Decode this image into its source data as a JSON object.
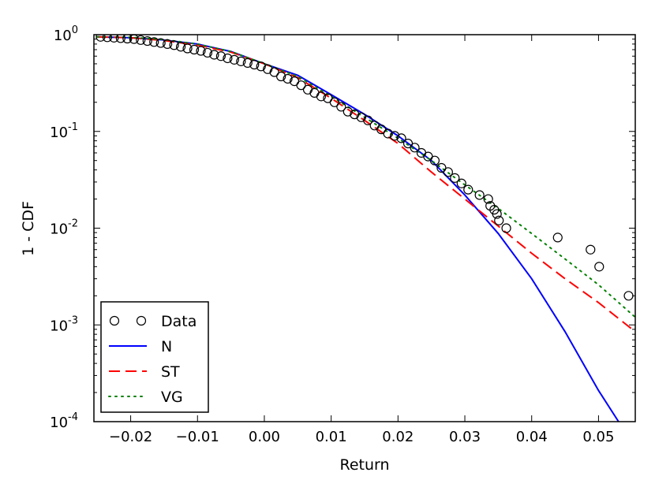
{
  "chart_data": {
    "type": "line",
    "title": "",
    "xlabel": "Return",
    "ylabel": "1 - CDF",
    "yscale": "log",
    "xlim": [
      -0.0255,
      0.0555
    ],
    "ylim": [
      0.0001,
      1.0
    ],
    "grid": false,
    "xticks": [
      -0.02,
      -0.01,
      0.0,
      0.01,
      0.02,
      0.03,
      0.04,
      0.05
    ],
    "xtick_labels": [
      "−0.02",
      "−0.01",
      "0.00",
      "0.01",
      "0.02",
      "0.03",
      "0.04",
      "0.05"
    ],
    "yticks": [
      {
        "value": 1.0,
        "base": "10",
        "exp": "0"
      },
      {
        "value": 0.1,
        "base": "10",
        "exp": "-1"
      },
      {
        "value": 0.01,
        "base": "10",
        "exp": "-2"
      },
      {
        "value": 0.001,
        "base": "10",
        "exp": "-3"
      },
      {
        "value": 0.0001,
        "base": "10",
        "exp": "-4"
      }
    ],
    "legend": {
      "position": "lower-left",
      "entries": [
        {
          "label": "Data",
          "style": "markers",
          "color": "#000000"
        },
        {
          "label": "N",
          "style": "solid",
          "color": "#0000ff"
        },
        {
          "label": "ST",
          "style": "dashed",
          "color": "#ff0000"
        },
        {
          "label": "VG",
          "style": "dotted",
          "color": "#008000"
        }
      ]
    },
    "series": [
      {
        "name": "Data",
        "style": "markers",
        "color": "#000000",
        "x": [
          -0.0245,
          -0.0235,
          -0.0225,
          -0.0215,
          -0.0205,
          -0.0195,
          -0.0185,
          -0.0175,
          -0.0165,
          -0.0155,
          -0.0145,
          -0.0135,
          -0.0125,
          -0.0115,
          -0.0105,
          -0.0095,
          -0.0085,
          -0.0075,
          -0.0065,
          -0.0055,
          -0.0045,
          -0.0035,
          -0.0025,
          -0.0015,
          -0.0005,
          0.0005,
          0.0015,
          0.0025,
          0.0035,
          0.0045,
          0.0055,
          0.0065,
          0.0075,
          0.0085,
          0.0095,
          0.0105,
          0.0115,
          0.0125,
          0.0135,
          0.0145,
          0.0155,
          0.0165,
          0.0175,
          0.0185,
          0.0195,
          0.0205,
          0.0215,
          0.0225,
          0.0235,
          0.0245,
          0.0255,
          0.0265,
          0.0275,
          0.0285,
          0.0295,
          0.0305,
          0.0322,
          0.0335,
          0.0338,
          0.0344,
          0.0348,
          0.0351,
          0.0362,
          0.0439,
          0.0488,
          0.0501,
          0.0545
        ],
        "y": [
          0.95,
          0.94,
          0.93,
          0.92,
          0.91,
          0.9,
          0.88,
          0.86,
          0.84,
          0.82,
          0.8,
          0.78,
          0.75,
          0.72,
          0.7,
          0.68,
          0.65,
          0.62,
          0.6,
          0.57,
          0.55,
          0.53,
          0.51,
          0.49,
          0.47,
          0.44,
          0.41,
          0.37,
          0.35,
          0.33,
          0.3,
          0.27,
          0.25,
          0.23,
          0.22,
          0.2,
          0.18,
          0.16,
          0.15,
          0.14,
          0.13,
          0.115,
          0.105,
          0.095,
          0.09,
          0.085,
          0.075,
          0.068,
          0.06,
          0.055,
          0.05,
          0.042,
          0.038,
          0.033,
          0.029,
          0.025,
          0.022,
          0.02,
          0.017,
          0.0155,
          0.014,
          0.012,
          0.01,
          0.008,
          0.006,
          0.004,
          0.002
        ]
      },
      {
        "name": "N",
        "style": "solid",
        "color": "#0000ff",
        "x": [
          -0.025,
          -0.02,
          -0.015,
          -0.01,
          -0.005,
          0.0,
          0.005,
          0.01,
          0.015,
          0.02,
          0.025,
          0.03,
          0.035,
          0.04,
          0.045,
          0.05,
          0.053
        ],
        "y": [
          0.95,
          0.93,
          0.88,
          0.8,
          0.67,
          0.5,
          0.38,
          0.24,
          0.15,
          0.09,
          0.05,
          0.022,
          0.0088,
          0.003,
          0.00085,
          0.00021,
          0.0001
        ]
      },
      {
        "name": "ST",
        "style": "dashed",
        "color": "#ff0000",
        "x": [
          -0.025,
          -0.02,
          -0.015,
          -0.01,
          -0.005,
          0.0,
          0.005,
          0.01,
          0.015,
          0.02,
          0.025,
          0.03,
          0.035,
          0.04,
          0.045,
          0.05,
          0.0555
        ],
        "y": [
          0.95,
          0.93,
          0.87,
          0.78,
          0.66,
          0.5,
          0.36,
          0.22,
          0.13,
          0.075,
          0.038,
          0.02,
          0.0105,
          0.0055,
          0.003,
          0.0017,
          0.00085
        ]
      },
      {
        "name": "VG",
        "style": "dotted",
        "color": "#008000",
        "x": [
          -0.025,
          -0.02,
          -0.015,
          -0.01,
          -0.005,
          0.0,
          0.005,
          0.01,
          0.015,
          0.02,
          0.025,
          0.03,
          0.035,
          0.04,
          0.045,
          0.05,
          0.0555
        ],
        "y": [
          0.95,
          0.94,
          0.89,
          0.8,
          0.67,
          0.5,
          0.37,
          0.23,
          0.14,
          0.085,
          0.05,
          0.028,
          0.016,
          0.0088,
          0.0048,
          0.0026,
          0.0012
        ]
      }
    ]
  }
}
